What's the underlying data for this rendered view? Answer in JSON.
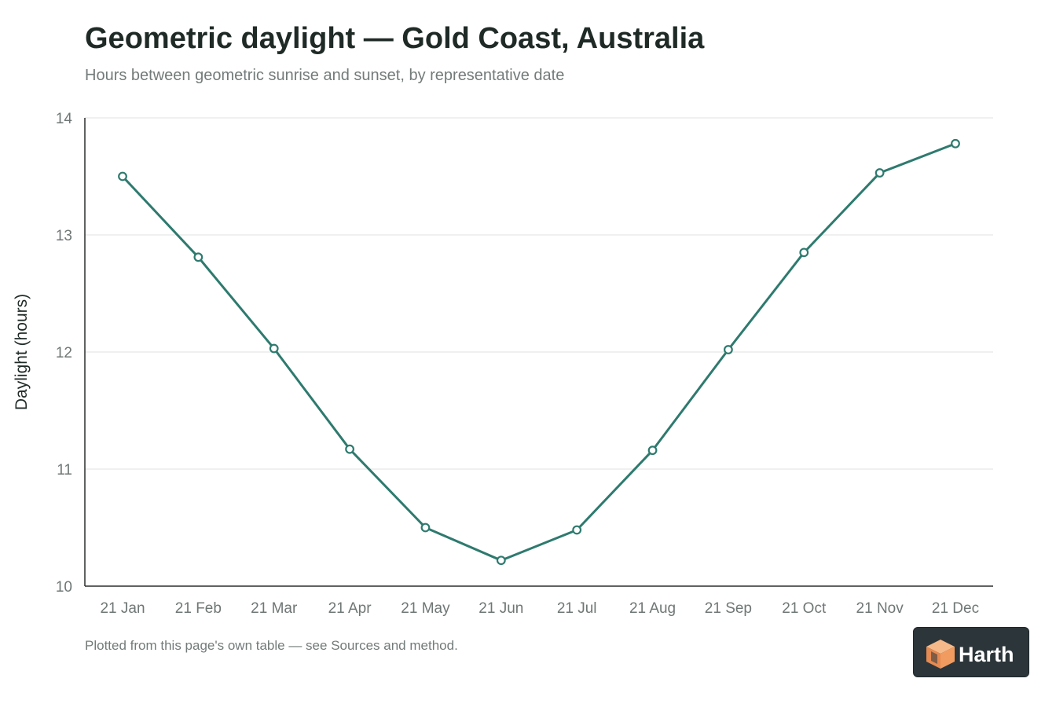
{
  "chart_data": {
    "type": "line",
    "title": "Geometric daylight — Gold Coast, Australia",
    "subtitle": "Hours between geometric sunrise and sunset, by representative date",
    "xlabel": "",
    "ylabel": "Daylight (hours)",
    "categories": [
      "21 Jan",
      "21 Feb",
      "21 Mar",
      "21 Apr",
      "21 May",
      "21 Jun",
      "21 Jul",
      "21 Aug",
      "21 Sep",
      "21 Oct",
      "21 Nov",
      "21 Dec"
    ],
    "series": [
      {
        "values": [
          13.5,
          12.81,
          12.03,
          11.17,
          10.5,
          10.22,
          10.48,
          11.16,
          12.02,
          12.85,
          13.53,
          13.78
        ]
      }
    ],
    "ylim": [
      10,
      14
    ],
    "yticks": [
      10,
      11,
      12,
      13,
      14
    ],
    "grid": true,
    "colors": {
      "line": "#2e7a6e",
      "marker_fill": "#ffffff",
      "grid": "#e6e8e8",
      "axis": "#2b2f2f",
      "tick_label": "#6f7776"
    }
  },
  "footnote": "Plotted from this page's own table — see Sources and method.",
  "logo": {
    "text": "Harth",
    "icon": "orange-cube-icon",
    "colors": {
      "background": "#2c363a",
      "icon_light": "#f6b98a",
      "icon_dark": "#e58a52"
    }
  }
}
